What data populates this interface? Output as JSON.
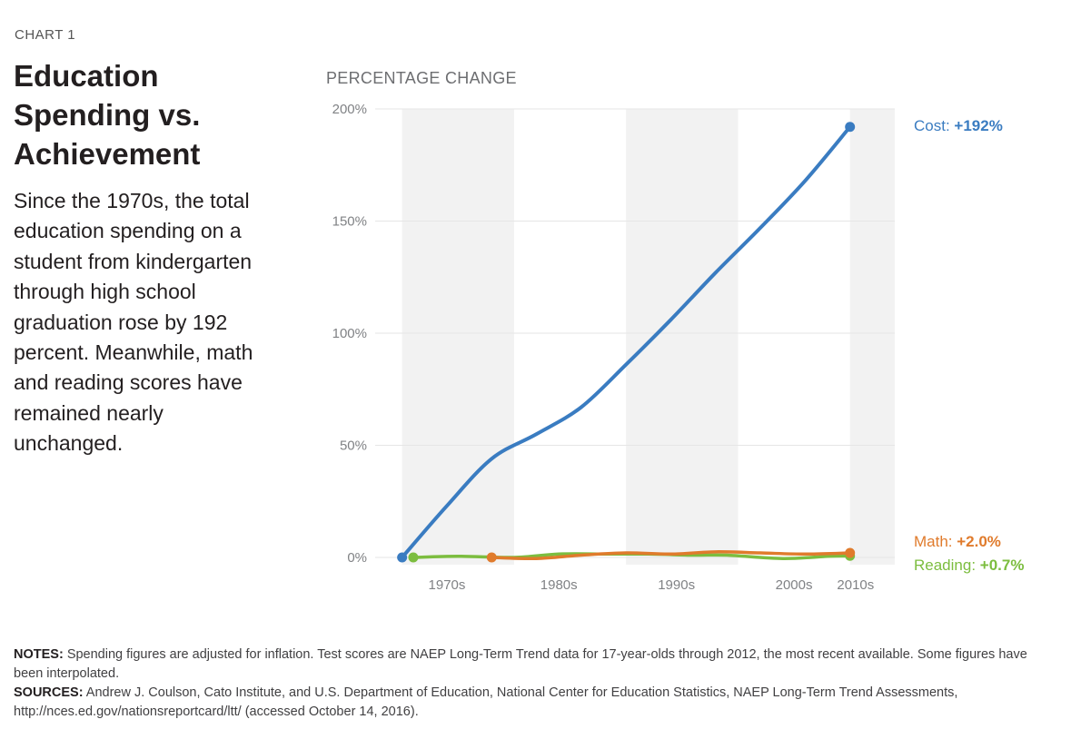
{
  "chart_label": "CHART 1",
  "title": "Education Spending vs. Achievement",
  "description": "Since the 1970s, the total education spending on a student from kindergarten through high school graduation rose by 192 percent. Meanwhile, math and reading scores have remained nearly unchanged.",
  "colors": {
    "cost": "#3a7cc1",
    "math": "#e07b2c",
    "reading": "#7cbd3f",
    "band": "#f2f2f2",
    "grid": "#e6e6e6"
  },
  "footer": {
    "notes_label": "NOTES:",
    "notes_text": "Spending figures are adjusted for inflation. Test scores are NAEP Long-Term Trend data for 17-year-olds through 2012, the most recent available. Some figures have been interpolated.",
    "sources_label": "SOURCES:",
    "sources_text": "Andrew J. Coulson, Cato Institute, and U.S. Department of Education, National Center for Education Statistics, NAEP Long-Term Trend Assessments, http://nces.ed.gov/nationsreportcard/ltt/ (accessed October 14, 2016)."
  },
  "chart_data": {
    "type": "line",
    "title": "Education Spending vs. Achievement",
    "ylabel": "PERCENTAGE CHANGE",
    "xlabel": "",
    "ylim": [
      0,
      200
    ],
    "xlim": [
      1968,
      2014
    ],
    "y_ticks": [
      0,
      50,
      100,
      150,
      200
    ],
    "y_tick_labels": [
      "0%",
      "50%",
      "100%",
      "150%",
      "200%"
    ],
    "x_categories": [
      "1970s",
      "1980s",
      "1990s",
      "2000s",
      "2010s"
    ],
    "x_category_centers": [
      1974,
      1984,
      1994.5,
      2005,
      2010.5
    ],
    "shaded_bands": [
      [
        1970,
        1980
      ],
      [
        1990,
        2000
      ],
      [
        2010,
        2014
      ]
    ],
    "grid": true,
    "series": [
      {
        "name": "Cost",
        "label": "Cost:",
        "end_label": "+192%",
        "color_key": "cost",
        "x": [
          1970,
          1974,
          1978,
          1982,
          1986,
          1990,
          1994,
          1998,
          2002,
          2006,
          2010
        ],
        "y": [
          0,
          23,
          44,
          55,
          67,
          86,
          106,
          127,
          147,
          168,
          192
        ]
      },
      {
        "name": "Math",
        "label": "Math:",
        "end_label": "+2.0%",
        "color_key": "math",
        "x": [
          1978,
          1982,
          1986,
          1990,
          1994,
          1998,
          2002,
          2006,
          2010
        ],
        "y": [
          0,
          -0.5,
          1,
          2,
          1.5,
          2.5,
          2,
          1.5,
          2.0
        ]
      },
      {
        "name": "Reading",
        "label": "Reading:",
        "end_label": "+0.7%",
        "color_key": "reading",
        "x": [
          1971,
          1975,
          1980,
          1984,
          1988,
          1992,
          1996,
          1999,
          2004,
          2008,
          2010
        ],
        "y": [
          0,
          0.5,
          0,
          1.5,
          1.5,
          1.5,
          1,
          1,
          -0.5,
          0.5,
          0.7
        ]
      }
    ]
  }
}
